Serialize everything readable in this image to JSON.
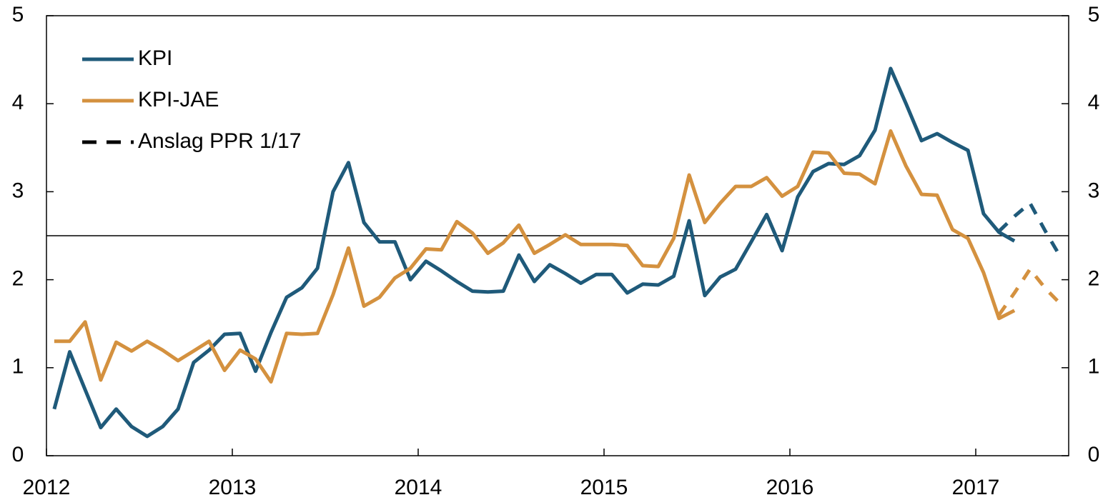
{
  "chart_data": {
    "type": "line",
    "x": [
      2012.042,
      2012.125,
      2012.208,
      2012.292,
      2012.375,
      2012.458,
      2012.542,
      2012.625,
      2012.708,
      2012.792,
      2012.875,
      2012.958,
      2013.042,
      2013.125,
      2013.208,
      2013.292,
      2013.375,
      2013.458,
      2013.542,
      2013.625,
      2013.708,
      2013.792,
      2013.875,
      2013.958,
      2014.042,
      2014.125,
      2014.208,
      2014.292,
      2014.375,
      2014.458,
      2014.542,
      2014.625,
      2014.708,
      2014.792,
      2014.875,
      2014.958,
      2015.042,
      2015.125,
      2015.208,
      2015.292,
      2015.375,
      2015.458,
      2015.542,
      2015.625,
      2015.708,
      2015.792,
      2015.875,
      2015.958,
      2016.042,
      2016.125,
      2016.208,
      2016.292,
      2016.375,
      2016.458,
      2016.542,
      2016.625,
      2016.708,
      2016.792,
      2016.875,
      2016.958,
      2017.042,
      2017.125,
      2017.208
    ],
    "series": [
      {
        "name": "KPI",
        "color": "#1f5a7a",
        "values": [
          0.53,
          1.18,
          0.75,
          0.32,
          0.53,
          0.33,
          0.22,
          0.33,
          0.53,
          1.06,
          1.2,
          1.38,
          1.39,
          0.96,
          1.4,
          1.8,
          1.91,
          2.13,
          3.0,
          3.33,
          2.65,
          2.43,
          2.43,
          2.0,
          2.21,
          2.1,
          1.98,
          1.87,
          1.86,
          1.87,
          2.28,
          1.98,
          2.17,
          2.07,
          1.96,
          2.06,
          2.06,
          1.85,
          1.95,
          1.94,
          2.04,
          2.67,
          1.82,
          2.03,
          2.12,
          2.43,
          2.74,
          2.33,
          2.94,
          3.23,
          3.32,
          3.31,
          3.41,
          3.7,
          4.4,
          4.0,
          3.58,
          3.66,
          3.56,
          3.47,
          2.75,
          2.54,
          2.44
        ]
      },
      {
        "name": "KPI-JAE",
        "color": "#d4913f",
        "values": [
          1.3,
          1.3,
          1.52,
          0.86,
          1.29,
          1.19,
          1.3,
          1.2,
          1.08,
          1.19,
          1.3,
          0.97,
          1.2,
          1.1,
          0.84,
          1.39,
          1.38,
          1.39,
          1.83,
          2.36,
          1.7,
          1.8,
          2.02,
          2.13,
          2.35,
          2.34,
          2.66,
          2.53,
          2.3,
          2.42,
          2.62,
          2.3,
          2.4,
          2.51,
          2.4,
          2.4,
          2.4,
          2.39,
          2.16,
          2.15,
          2.47,
          3.19,
          2.65,
          2.87,
          3.06,
          3.06,
          3.16,
          2.95,
          3.06,
          3.45,
          3.44,
          3.21,
          3.2,
          3.09,
          3.69,
          3.29,
          2.97,
          2.96,
          2.57,
          2.47,
          2.08,
          1.56,
          1.65
        ]
      }
    ],
    "forecast": {
      "name": "Anslag PPR 1/17",
      "color": "#000000",
      "x": [
        2017.125,
        2017.208,
        2017.292,
        2017.375,
        2017.458
      ],
      "values": [
        [
          2.55,
          2.72,
          2.87,
          2.55,
          2.25
        ],
        [
          1.6,
          1.85,
          2.12,
          1.9,
          1.72
        ]
      ]
    },
    "reference_line": 2.5,
    "xlim": [
      2012,
      2017.5
    ],
    "xticks": [
      2012,
      2013,
      2014,
      2015,
      2016,
      2017
    ],
    "ylim": [
      0,
      5
    ],
    "yticks": [
      0,
      1,
      2,
      3,
      4,
      5
    ],
    "y2lim": [
      0,
      5
    ],
    "y2ticks": [
      0,
      1,
      2,
      3,
      4,
      5
    ],
    "legend": "upper left"
  }
}
